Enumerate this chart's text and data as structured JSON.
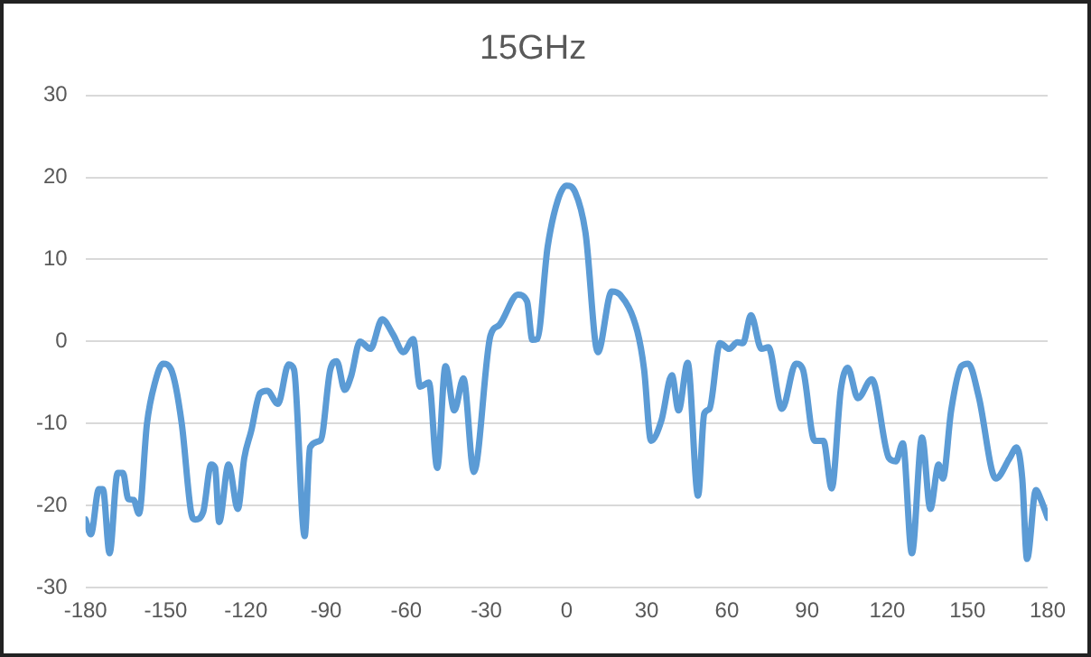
{
  "chart_data": {
    "type": "line",
    "title": "15GHz",
    "x": [
      -180,
      -178,
      -175,
      -173.5,
      -171,
      -168,
      -166,
      -164,
      -162,
      -160,
      -157,
      -154,
      -151,
      -148,
      -144,
      -140.5,
      -139,
      -136,
      -133,
      -131.5,
      -130,
      -126.5,
      -123,
      -120.6,
      -118,
      -114.7,
      -112,
      -108,
      -104,
      -102,
      -98,
      -96,
      -92,
      -88.4,
      -86,
      -83,
      -80.6,
      -77.3,
      -73.4,
      -69,
      -65,
      -61,
      -57.4,
      -54.8,
      -51.5,
      -48.4,
      -45.3,
      -42,
      -38.6,
      -34.7,
      -28.5,
      -25.2,
      -18.2,
      -14.8,
      -12.8,
      -11,
      -7.1,
      -3.2,
      0,
      3.2,
      7.1,
      11.7,
      16.9,
      20,
      26.5,
      29,
      31.6,
      35.5,
      39.4,
      41.9,
      45.3,
      49.2,
      51.5,
      53.5,
      57.4,
      60.8,
      63.9,
      66,
      69,
      72.9,
      75.5,
      80.6,
      85.8,
      88.4,
      92.8,
      96.1,
      99.2,
      102.6,
      105.2,
      109,
      114.2,
      120.6,
      123.2,
      125.8,
      129.2,
      133,
      136.1,
      139.2,
      140.8,
      143.9,
      147.7,
      150.3,
      154.2,
      160.6,
      165.8,
      168.4,
      170.5,
      172.3,
      175.6,
      177.4,
      180
    ],
    "series": [
      {
        "color": "#5b9bd5",
        "values": [
          -21.7,
          -23.5,
          -18,
          -18,
          -25.8,
          -16,
          -16,
          -19.2,
          -19.3,
          -21,
          -10,
          -5,
          -2.7,
          -3.4,
          -10,
          -20.8,
          -21.7,
          -20.8,
          -15,
          -15.4,
          -22,
          -15,
          -20.4,
          -14.2,
          -10.9,
          -6.3,
          -6,
          -7.6,
          -2.8,
          -3.4,
          -23.7,
          -12.9,
          -12,
          -3.4,
          -2.4,
          -5.9,
          -4.2,
          0,
          -0.9,
          2.7,
          0.9,
          -1.3,
          0.3,
          -5.5,
          -5,
          -15.4,
          -3,
          -8.4,
          -4.5,
          -15.9,
          0.7,
          2,
          5.7,
          4.9,
          0.2,
          0.3,
          11.5,
          17.3,
          19,
          18.2,
          13.2,
          -1.3,
          6.1,
          5.7,
          1.2,
          -3.4,
          -12.1,
          -9.6,
          -4.1,
          -8.4,
          -2.6,
          -18.8,
          -8.8,
          -8.2,
          -0.2,
          -0.9,
          -0.1,
          -0.2,
          3.2,
          -0.9,
          -0.7,
          -8.2,
          -2.7,
          -3.4,
          -12.1,
          -12.1,
          -17.9,
          -5.9,
          -3.2,
          -6.9,
          -4.6,
          -14.2,
          -14.6,
          -12.4,
          -25.8,
          -11.7,
          -20.4,
          -15,
          -16.7,
          -8.4,
          -3,
          -2.7,
          -6.7,
          -16.7,
          -14.2,
          -12.9,
          -16.7,
          -26.5,
          -18.1,
          -19.2,
          -21.5
        ]
      }
    ],
    "xlim": [
      -180,
      180
    ],
    "xticks": [
      -180,
      -150,
      -120,
      -90,
      -60,
      -30,
      0,
      30,
      60,
      90,
      120,
      150,
      180
    ],
    "ylim": [
      -30,
      30
    ],
    "yticks": [
      -30,
      -20,
      -10,
      0,
      10,
      20,
      30
    ],
    "grid": "y",
    "legend": false,
    "marker": "none",
    "line_style": "solid"
  }
}
